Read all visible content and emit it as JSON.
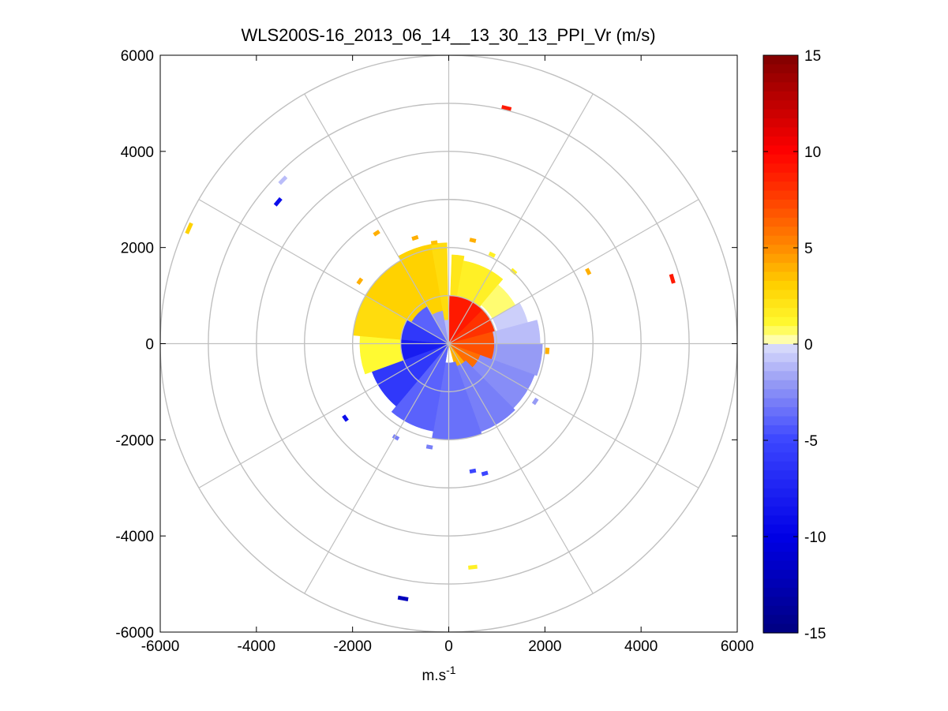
{
  "chart_data": {
    "type": "heatmap",
    "subtype": "polar-ppi",
    "title": "WLS200S-16_2013_06_14__13_30_13_PPI_Vr (m/s)",
    "xlabel_base": "m.s",
    "xlabel_sup": "-1",
    "ylabel": "",
    "xlim": [
      -6000,
      6000
    ],
    "ylim": [
      -6000,
      6000
    ],
    "xticks": [
      -6000,
      -4000,
      -2000,
      0,
      2000,
      4000,
      6000
    ],
    "yticks": [
      6000,
      4000,
      2000,
      0,
      -2000,
      -4000,
      -6000
    ],
    "xtick_labels": [
      "-6000",
      "-4000",
      "-2000",
      "0",
      "2000",
      "4000",
      "6000"
    ],
    "ytick_labels": [
      "6000",
      "4000",
      "2000",
      "0",
      "-2000",
      "-4000",
      "-6000"
    ],
    "range_rings_m": [
      1000,
      2000,
      3000,
      4000,
      5000,
      6000
    ],
    "spoke_angles_deg": [
      0,
      30,
      60,
      90,
      120,
      150,
      180,
      210,
      240,
      270,
      300,
      330
    ],
    "grid": true,
    "colorbar": {
      "min": -15,
      "max": 15,
      "ticks": [
        15,
        10,
        5,
        0,
        -5,
        -10,
        -15
      ],
      "tick_labels": [
        "15",
        "10",
        "5",
        "0",
        "-5",
        "-10",
        "-15"
      ],
      "placement": "right"
    },
    "sectors": [
      {
        "az_start": 1,
        "az_end": 45,
        "r_start": 0,
        "r_end": 1000,
        "value": 9
      },
      {
        "az_start": 45,
        "az_end": 75,
        "r_start": 0,
        "r_end": 1000,
        "value": 8
      },
      {
        "az_start": 75,
        "az_end": 110,
        "r_start": 0,
        "r_end": 950,
        "value": 7
      },
      {
        "az_start": 110,
        "az_end": 140,
        "r_start": 0,
        "r_end": 700,
        "value": 6
      },
      {
        "az_start": 140,
        "az_end": 165,
        "r_start": 0,
        "r_end": 500,
        "value": 4
      },
      {
        "az_start": 2,
        "az_end": 10,
        "r_start": 1000,
        "r_end": 1850,
        "value": 2
      },
      {
        "az_start": 10,
        "az_end": 40,
        "r_start": 1000,
        "r_end": 1750,
        "value": 1.5
      },
      {
        "az_start": 40,
        "az_end": 60,
        "r_start": 1050,
        "r_end": 1600,
        "value": 0.6
      },
      {
        "az_start": 60,
        "az_end": 75,
        "r_start": 1050,
        "r_end": 1700,
        "value": -0.5
      },
      {
        "az_start": 75,
        "az_end": 90,
        "r_start": 950,
        "r_end": 1900,
        "value": -1
      },
      {
        "az_start": 90,
        "az_end": 110,
        "r_start": 950,
        "r_end": 1950,
        "value": -2
      },
      {
        "az_start": 110,
        "az_end": 135,
        "r_start": 700,
        "r_end": 1900,
        "value": -2.5
      },
      {
        "az_start": 135,
        "az_end": 160,
        "r_start": 500,
        "r_end": 1950,
        "value": -3
      },
      {
        "az_start": 160,
        "az_end": 190,
        "r_start": 400,
        "r_end": 2000,
        "value": -3.5
      },
      {
        "az_start": 190,
        "az_end": 220,
        "r_start": 0,
        "r_end": 1850,
        "value": -4
      },
      {
        "az_start": 220,
        "az_end": 250,
        "r_start": 0,
        "r_end": 1700,
        "value": -6
      },
      {
        "az_start": 250,
        "az_end": 275,
        "r_start": 0,
        "r_end": 1000,
        "value": -8
      },
      {
        "az_start": 275,
        "az_end": 300,
        "r_start": 0,
        "r_end": 1000,
        "value": -6
      },
      {
        "az_start": 300,
        "az_end": 330,
        "r_start": 0,
        "r_end": 900,
        "value": -4
      },
      {
        "az_start": 330,
        "az_end": 350,
        "r_start": 0,
        "r_end": 700,
        "value": -2
      },
      {
        "az_start": 350,
        "az_end": 359,
        "r_start": 0,
        "r_end": 500,
        "value": -1
      },
      {
        "az_start": 250,
        "az_end": 275,
        "r_start": 1000,
        "r_end": 1850,
        "value": 1
      },
      {
        "az_start": 275,
        "az_end": 300,
        "r_start": 1000,
        "r_end": 2000,
        "value": 2.5
      },
      {
        "az_start": 300,
        "az_end": 330,
        "r_start": 900,
        "r_end": 2000,
        "value": 3
      },
      {
        "az_start": 330,
        "az_end": 350,
        "r_start": 700,
        "r_end": 2100,
        "value": 3
      },
      {
        "az_start": 350,
        "az_end": 359,
        "r_start": 500,
        "r_end": 2100,
        "value": 2.5
      }
    ],
    "speckles": [
      {
        "x": 1200,
        "y": 4900,
        "value": 9
      },
      {
        "x": 4650,
        "y": 1350,
        "value": 9
      },
      {
        "x": 2900,
        "y": 1500,
        "value": 4
      },
      {
        "x": -5400,
        "y": 2400,
        "value": 3
      },
      {
        "x": -3550,
        "y": 2950,
        "value": -9
      },
      {
        "x": -3450,
        "y": 3400,
        "value": -1
      },
      {
        "x": -1500,
        "y": 2300,
        "value": 4
      },
      {
        "x": -700,
        "y": 2200,
        "value": 4
      },
      {
        "x": -300,
        "y": 2100,
        "value": 3.5
      },
      {
        "x": 500,
        "y": 2150,
        "value": 4
      },
      {
        "x": 900,
        "y": 1850,
        "value": 1.5
      },
      {
        "x": 1350,
        "y": 1500,
        "value": 1.5
      },
      {
        "x": -1850,
        "y": 1300,
        "value": 4
      },
      {
        "x": 2050,
        "y": -150,
        "value": 4
      },
      {
        "x": -2150,
        "y": -1550,
        "value": -9
      },
      {
        "x": -1100,
        "y": -1950,
        "value": -3
      },
      {
        "x": -400,
        "y": -2150,
        "value": -3
      },
      {
        "x": 500,
        "y": -2650,
        "value": -5
      },
      {
        "x": 750,
        "y": -2700,
        "value": -5
      },
      {
        "x": 1800,
        "y": -1200,
        "value": -2
      },
      {
        "x": 500,
        "y": -4650,
        "value": 1.5
      },
      {
        "x": -950,
        "y": -5300,
        "value": -12
      }
    ]
  }
}
